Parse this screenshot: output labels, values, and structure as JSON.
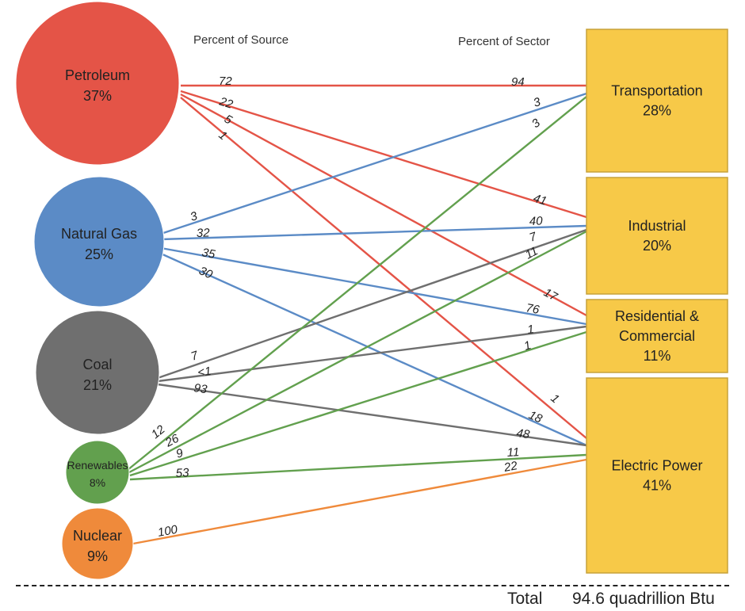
{
  "headers": {
    "source": "Percent of Source",
    "sector": "Percent of Sector"
  },
  "colors": {
    "petroleum": "#e45447",
    "natural_gas": "#5b8bc6",
    "coal": "#6f6f6f",
    "renewables": "#62a04e",
    "nuclear": "#ef8a3b",
    "sector_fill": "#f7c948",
    "sector_stroke": "#c7a23a"
  },
  "sources": [
    {
      "id": "petroleum",
      "name": "Petroleum",
      "pct": "37%"
    },
    {
      "id": "natural_gas",
      "name": "Natural Gas",
      "pct": "25%"
    },
    {
      "id": "coal",
      "name": "Coal",
      "pct": "21%"
    },
    {
      "id": "renewables",
      "name": "Renewables",
      "pct": "8%"
    },
    {
      "id": "nuclear",
      "name": "Nuclear",
      "pct": "9%"
    }
  ],
  "sectors": [
    {
      "id": "transportation",
      "name": "Transportation",
      "pct": "28%"
    },
    {
      "id": "industrial",
      "name": "Industrial",
      "pct": "20%"
    },
    {
      "id": "residential_commercial",
      "name": "Residential & Commercial",
      "pct": "11%"
    },
    {
      "id": "electric_power",
      "name": "Electric Power",
      "pct": "41%"
    }
  ],
  "flows": [
    {
      "source": "petroleum",
      "sector": "transportation",
      "source_pct": "72",
      "sector_pct": "94"
    },
    {
      "source": "petroleum",
      "sector": "industrial",
      "source_pct": "22",
      "sector_pct": "41"
    },
    {
      "source": "petroleum",
      "sector": "residential_commercial",
      "source_pct": "5",
      "sector_pct": "17"
    },
    {
      "source": "petroleum",
      "sector": "electric_power",
      "source_pct": "1",
      "sector_pct": "1"
    },
    {
      "source": "natural_gas",
      "sector": "transportation",
      "source_pct": "3",
      "sector_pct": "3"
    },
    {
      "source": "natural_gas",
      "sector": "industrial",
      "source_pct": "32",
      "sector_pct": "40"
    },
    {
      "source": "natural_gas",
      "sector": "residential_commercial",
      "source_pct": "35",
      "sector_pct": "76"
    },
    {
      "source": "natural_gas",
      "sector": "electric_power",
      "source_pct": "30",
      "sector_pct": "18"
    },
    {
      "source": "coal",
      "sector": "industrial",
      "source_pct": "7",
      "sector_pct": "7"
    },
    {
      "source": "coal",
      "sector": "residential_commercial",
      "source_pct": "<1",
      "sector_pct": "1"
    },
    {
      "source": "coal",
      "sector": "electric_power",
      "source_pct": "93",
      "sector_pct": "48"
    },
    {
      "source": "renewables",
      "sector": "transportation",
      "source_pct": "12",
      "sector_pct": "3"
    },
    {
      "source": "renewables",
      "sector": "industrial",
      "source_pct": "26",
      "sector_pct": "11"
    },
    {
      "source": "renewables",
      "sector": "residential_commercial",
      "source_pct": "9",
      "sector_pct": "1"
    },
    {
      "source": "renewables",
      "sector": "electric_power",
      "source_pct": "53",
      "sector_pct": "11"
    },
    {
      "source": "nuclear",
      "sector": "electric_power",
      "source_pct": "100",
      "sector_pct": "22"
    }
  ],
  "total": {
    "label": "Total",
    "value": "94.6 quadrillion Btu"
  }
}
